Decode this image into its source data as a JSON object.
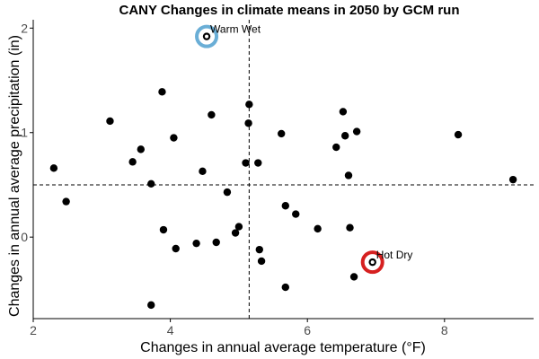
{
  "chart_data": {
    "type": "scatter",
    "title": "CANY Changes in climate means in 2050 by GCM run",
    "xlabel": "Changes in annual average temperature (°F)",
    "ylabel": "Changes in annual average precipitation (in)",
    "xlim": [
      2,
      9.3
    ],
    "ylim": [
      -0.78,
      2.08
    ],
    "xticks": [
      2,
      4,
      6,
      8
    ],
    "yticks": [
      0,
      1,
      2
    ],
    "grid": false,
    "point_color": "#000000",
    "reference_lines": {
      "x": 5.15,
      "y": 0.5
    },
    "points": [
      {
        "x": 2.3,
        "y": 0.66
      },
      {
        "x": 2.48,
        "y": 0.34
      },
      {
        "x": 3.12,
        "y": 1.11
      },
      {
        "x": 3.45,
        "y": 0.72
      },
      {
        "x": 3.57,
        "y": 0.84
      },
      {
        "x": 3.72,
        "y": 0.51
      },
      {
        "x": 3.88,
        "y": 1.39
      },
      {
        "x": 3.9,
        "y": 0.07
      },
      {
        "x": 4.05,
        "y": 0.95
      },
      {
        "x": 4.08,
        "y": -0.11
      },
      {
        "x": 4.38,
        "y": -0.06
      },
      {
        "x": 4.47,
        "y": 0.63
      },
      {
        "x": 4.53,
        "y": 1.92
      },
      {
        "x": 4.6,
        "y": 1.17
      },
      {
        "x": 4.67,
        "y": -0.05
      },
      {
        "x": 4.83,
        "y": 0.43
      },
      {
        "x": 4.95,
        "y": 0.04
      },
      {
        "x": 5.0,
        "y": 0.1
      },
      {
        "x": 5.1,
        "y": 0.71
      },
      {
        "x": 5.14,
        "y": 1.09
      },
      {
        "x": 5.15,
        "y": 1.27
      },
      {
        "x": 5.28,
        "y": 0.71
      },
      {
        "x": 5.3,
        "y": -0.12
      },
      {
        "x": 5.33,
        "y": -0.23
      },
      {
        "x": 5.62,
        "y": 0.99
      },
      {
        "x": 5.68,
        "y": 0.3
      },
      {
        "x": 5.68,
        "y": -0.48
      },
      {
        "x": 5.83,
        "y": 0.22
      },
      {
        "x": 3.72,
        "y": -0.65
      },
      {
        "x": 6.15,
        "y": 0.08
      },
      {
        "x": 6.42,
        "y": 0.86
      },
      {
        "x": 6.52,
        "y": 1.2
      },
      {
        "x": 6.55,
        "y": 0.97
      },
      {
        "x": 6.6,
        "y": 0.59
      },
      {
        "x": 6.62,
        "y": 0.09
      },
      {
        "x": 6.72,
        "y": 1.01
      },
      {
        "x": 6.68,
        "y": -0.38
      },
      {
        "x": 6.95,
        "y": -0.24
      },
      {
        "x": 8.2,
        "y": 0.98
      },
      {
        "x": 9.0,
        "y": 0.55
      }
    ],
    "annotations": [
      {
        "label": "Warm Wet",
        "x": 4.53,
        "y": 1.92,
        "ring_color": "#6aaed6"
      },
      {
        "label": "Hot Dry",
        "x": 6.95,
        "y": -0.24,
        "ring_color": "#d62020"
      }
    ]
  }
}
